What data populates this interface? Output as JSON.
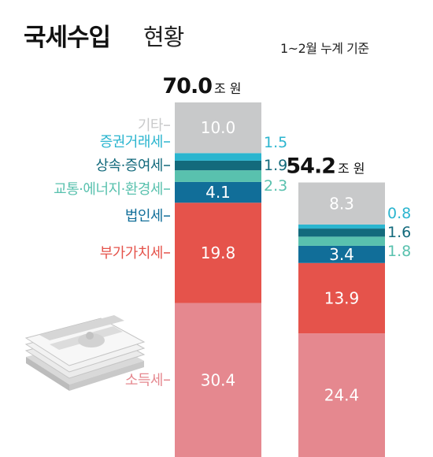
{
  "header": {
    "title_main": "국세수입",
    "title_sub": "현황",
    "subtitle": "1~2월 누계 기준"
  },
  "colors": {
    "기타": "#c8c9ca",
    "증권거래세": "#2bb5cf",
    "상속·증여세": "#136a7c",
    "교통·에너지·환경세": "#59c1ae",
    "법인세": "#116e99",
    "부가가치세": "#e5534b",
    "소득세": "#e5888f"
  },
  "chart_data": {
    "type": "bar",
    "stacked": true,
    "unit": "조 원",
    "ylim": [
      0,
      70.0
    ],
    "legend": "left",
    "categories": [
      "bar1",
      "bar2"
    ],
    "totals": [
      70.0,
      54.2
    ],
    "series": [
      {
        "name": "소득세",
        "values": [
          30.4,
          24.4
        ]
      },
      {
        "name": "부가가치세",
        "values": [
          19.8,
          13.9
        ]
      },
      {
        "name": "법인세",
        "values": [
          4.1,
          3.4
        ]
      },
      {
        "name": "교통·에너지·환경세",
        "values": [
          2.3,
          1.8
        ]
      },
      {
        "name": "상속·증여세",
        "values": [
          1.9,
          1.6
        ]
      },
      {
        "name": "증권거래세",
        "values": [
          1.5,
          0.8
        ]
      },
      {
        "name": "기타",
        "values": [
          10.0,
          8.3
        ]
      }
    ]
  }
}
